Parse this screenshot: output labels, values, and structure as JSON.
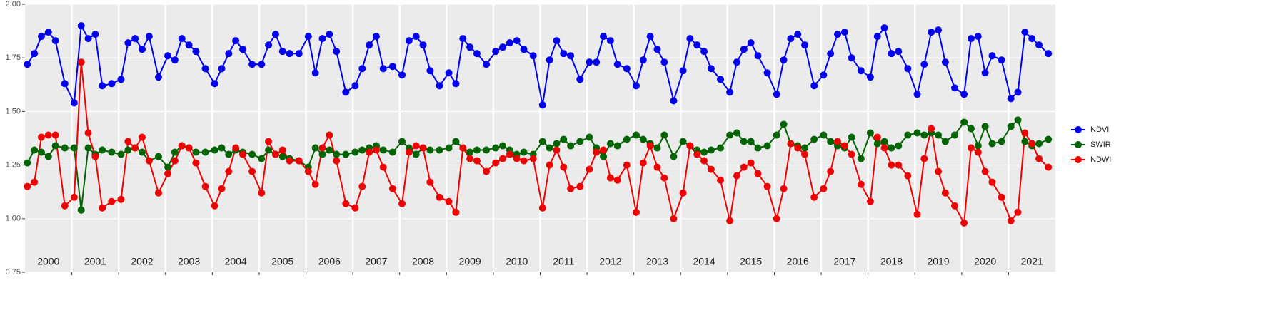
{
  "chart_data": {
    "type": "line",
    "xlim": [
      2000,
      2022
    ],
    "xticks": [
      2001,
      2002,
      2003,
      2004,
      2005,
      2006,
      2007,
      2008,
      2009,
      2010,
      2011,
      2012,
      2013,
      2014,
      2015,
      2016,
      2017,
      2018,
      2019,
      2020,
      2021
    ],
    "year_labels": [
      {
        "value": 2000.5,
        "label": "2000"
      },
      {
        "value": 2001.5,
        "label": "2001"
      },
      {
        "value": 2002.5,
        "label": "2002"
      },
      {
        "value": 2003.5,
        "label": "2003"
      },
      {
        "value": 2004.5,
        "label": "2004"
      },
      {
        "value": 2005.5,
        "label": "2005"
      },
      {
        "value": 2006.5,
        "label": "2006"
      },
      {
        "value": 2007.5,
        "label": "2007"
      },
      {
        "value": 2008.5,
        "label": "2008"
      },
      {
        "value": 2009.5,
        "label": "2009"
      },
      {
        "value": 2010.5,
        "label": "2010"
      },
      {
        "value": 2011.5,
        "label": "2011"
      },
      {
        "value": 2012.5,
        "label": "2012"
      },
      {
        "value": 2013.5,
        "label": "2013"
      },
      {
        "value": 2014.5,
        "label": "2014"
      },
      {
        "value": 2015.5,
        "label": "2015"
      },
      {
        "value": 2016.5,
        "label": "2016"
      },
      {
        "value": 2017.5,
        "label": "2017"
      },
      {
        "value": 2018.5,
        "label": "2018"
      },
      {
        "value": 2019.5,
        "label": "2019"
      },
      {
        "value": 2020.5,
        "label": "2020"
      },
      {
        "value": 2021.5,
        "label": "2021"
      }
    ],
    "ylim": [
      0.75,
      2.0
    ],
    "yticks": [
      {
        "value": 0.75,
        "label": "0.75"
      },
      {
        "value": 1.0,
        "label": "1.00"
      },
      {
        "value": 1.25,
        "label": "1.25"
      },
      {
        "value": 1.5,
        "label": "1.50"
      },
      {
        "value": 1.75,
        "label": "1.75"
      },
      {
        "value": 2.0,
        "label": "2.00"
      }
    ],
    "grid": true,
    "legend": "right",
    "x": [
      2000.05,
      2000.2,
      2000.35,
      2000.5,
      2000.65,
      2000.85,
      2001.05,
      2001.2,
      2001.35,
      2001.5,
      2001.65,
      2001.85,
      2002.05,
      2002.2,
      2002.35,
      2002.5,
      2002.65,
      2002.85,
      2003.05,
      2003.2,
      2003.35,
      2003.5,
      2003.65,
      2003.85,
      2004.05,
      2004.2,
      2004.35,
      2004.5,
      2004.65,
      2004.85,
      2005.05,
      2005.2,
      2005.35,
      2005.5,
      2005.65,
      2005.85,
      2006.05,
      2006.2,
      2006.35,
      2006.5,
      2006.65,
      2006.85,
      2007.05,
      2007.2,
      2007.35,
      2007.5,
      2007.65,
      2007.85,
      2008.05,
      2008.2,
      2008.35,
      2008.5,
      2008.65,
      2008.85,
      2009.05,
      2009.2,
      2009.35,
      2009.5,
      2009.65,
      2009.85,
      2010.05,
      2010.2,
      2010.35,
      2010.5,
      2010.65,
      2010.85,
      2011.05,
      2011.2,
      2011.35,
      2011.5,
      2011.65,
      2011.85,
      2012.05,
      2012.2,
      2012.35,
      2012.5,
      2012.65,
      2012.85,
      2013.05,
      2013.2,
      2013.35,
      2013.5,
      2013.65,
      2013.85,
      2014.05,
      2014.2,
      2014.35,
      2014.5,
      2014.65,
      2014.85,
      2015.05,
      2015.2,
      2015.35,
      2015.5,
      2015.65,
      2015.85,
      2016.05,
      2016.2,
      2016.35,
      2016.5,
      2016.65,
      2016.85,
      2017.05,
      2017.2,
      2017.35,
      2017.5,
      2017.65,
      2017.85,
      2018.05,
      2018.2,
      2018.35,
      2018.5,
      2018.65,
      2018.85,
      2019.05,
      2019.2,
      2019.35,
      2019.5,
      2019.65,
      2019.85,
      2020.05,
      2020.2,
      2020.35,
      2020.5,
      2020.65,
      2020.85,
      2021.05,
      2021.2,
      2021.35,
      2021.5,
      2021.65,
      2021.85
    ],
    "series": [
      {
        "name": "NDVI",
        "color": "#0000ee",
        "values": [
          1.72,
          1.77,
          1.85,
          1.87,
          1.83,
          1.63,
          1.54,
          1.9,
          1.84,
          1.86,
          1.62,
          1.63,
          1.65,
          1.82,
          1.84,
          1.79,
          1.85,
          1.66,
          1.76,
          1.74,
          1.84,
          1.81,
          1.78,
          1.7,
          1.63,
          1.7,
          1.77,
          1.83,
          1.79,
          1.72,
          1.72,
          1.81,
          1.86,
          1.78,
          1.77,
          1.77,
          1.85,
          1.68,
          1.84,
          1.86,
          1.78,
          1.59,
          1.62,
          1.7,
          1.81,
          1.85,
          1.7,
          1.71,
          1.67,
          1.83,
          1.85,
          1.81,
          1.69,
          1.62,
          1.68,
          1.63,
          1.84,
          1.8,
          1.77,
          1.72,
          1.78,
          1.8,
          1.82,
          1.83,
          1.79,
          1.76,
          1.53,
          1.74,
          1.83,
          1.77,
          1.76,
          1.65,
          1.73,
          1.73,
          1.85,
          1.83,
          1.72,
          1.7,
          1.62,
          1.74,
          1.85,
          1.79,
          1.73,
          1.55,
          1.69,
          1.84,
          1.81,
          1.78,
          1.7,
          1.65,
          1.59,
          1.73,
          1.79,
          1.82,
          1.76,
          1.68,
          1.58,
          1.74,
          1.84,
          1.86,
          1.81,
          1.62,
          1.67,
          1.77,
          1.86,
          1.87,
          1.75,
          1.69,
          1.66,
          1.85,
          1.89,
          1.77,
          1.78,
          1.7,
          1.58,
          1.72,
          1.87,
          1.88,
          1.73,
          1.61,
          1.58,
          1.84,
          1.85,
          1.68,
          1.76,
          1.74,
          1.56,
          1.59,
          1.87,
          1.84,
          1.81,
          1.77
        ]
      },
      {
        "name": "SWIR",
        "color": "#006400",
        "values": [
          1.26,
          1.32,
          1.31,
          1.29,
          1.34,
          1.33,
          1.33,
          1.04,
          1.33,
          1.3,
          1.32,
          1.31,
          1.3,
          1.32,
          1.33,
          1.31,
          1.27,
          1.29,
          1.24,
          1.31,
          1.34,
          1.33,
          1.31,
          1.31,
          1.32,
          1.33,
          1.3,
          1.32,
          1.31,
          1.3,
          1.28,
          1.32,
          1.3,
          1.29,
          1.28,
          1.27,
          1.24,
          1.33,
          1.3,
          1.32,
          1.3,
          1.3,
          1.31,
          1.32,
          1.33,
          1.34,
          1.32,
          1.31,
          1.36,
          1.33,
          1.3,
          1.33,
          1.32,
          1.32,
          1.33,
          1.36,
          1.33,
          1.31,
          1.32,
          1.32,
          1.33,
          1.34,
          1.32,
          1.3,
          1.31,
          1.3,
          1.36,
          1.33,
          1.35,
          1.37,
          1.34,
          1.36,
          1.38,
          1.33,
          1.29,
          1.35,
          1.34,
          1.37,
          1.39,
          1.37,
          1.35,
          1.33,
          1.39,
          1.29,
          1.36,
          1.34,
          1.32,
          1.31,
          1.32,
          1.33,
          1.39,
          1.4,
          1.36,
          1.36,
          1.33,
          1.34,
          1.39,
          1.44,
          1.35,
          1.34,
          1.33,
          1.37,
          1.39,
          1.36,
          1.34,
          1.33,
          1.38,
          1.28,
          1.4,
          1.35,
          1.36,
          1.33,
          1.34,
          1.39,
          1.4,
          1.39,
          1.4,
          1.39,
          1.36,
          1.39,
          1.45,
          1.42,
          1.34,
          1.43,
          1.35,
          1.36,
          1.43,
          1.46,
          1.36,
          1.34,
          1.35,
          1.37
        ]
      },
      {
        "name": "NDWI",
        "color": "#ee0000",
        "values": [
          1.15,
          1.17,
          1.38,
          1.39,
          1.39,
          1.06,
          1.1,
          1.73,
          1.4,
          1.29,
          1.05,
          1.08,
          1.09,
          1.36,
          1.33,
          1.38,
          1.27,
          1.12,
          1.21,
          1.27,
          1.34,
          1.33,
          1.26,
          1.15,
          1.06,
          1.14,
          1.22,
          1.33,
          1.3,
          1.22,
          1.12,
          1.36,
          1.3,
          1.32,
          1.27,
          1.27,
          1.22,
          1.16,
          1.33,
          1.39,
          1.27,
          1.07,
          1.05,
          1.15,
          1.31,
          1.32,
          1.24,
          1.14,
          1.07,
          1.31,
          1.34,
          1.33,
          1.17,
          1.1,
          1.08,
          1.03,
          1.33,
          1.28,
          1.27,
          1.22,
          1.26,
          1.28,
          1.3,
          1.28,
          1.27,
          1.28,
          1.05,
          1.25,
          1.32,
          1.24,
          1.14,
          1.15,
          1.23,
          1.31,
          1.32,
          1.19,
          1.18,
          1.25,
          1.03,
          1.26,
          1.34,
          1.24,
          1.19,
          1.0,
          1.12,
          1.34,
          1.3,
          1.27,
          1.23,
          1.18,
          0.99,
          1.2,
          1.24,
          1.26,
          1.21,
          1.15,
          1.0,
          1.14,
          1.35,
          1.33,
          1.3,
          1.1,
          1.14,
          1.22,
          1.36,
          1.34,
          1.3,
          1.16,
          1.08,
          1.38,
          1.33,
          1.25,
          1.25,
          1.2,
          1.02,
          1.28,
          1.42,
          1.22,
          1.12,
          1.06,
          0.98,
          1.33,
          1.31,
          1.22,
          1.17,
          1.1,
          0.99,
          1.03,
          1.4,
          1.35,
          1.28,
          1.24
        ]
      }
    ]
  }
}
